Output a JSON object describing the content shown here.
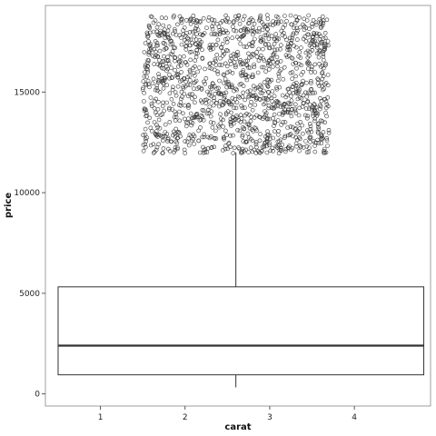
{
  "chart_data": {
    "type": "boxplot",
    "xlabel": "carat",
    "ylabel": "price",
    "xlim": [
      0.35,
      4.9
    ],
    "ylim": [
      -600,
      19300
    ],
    "x_ticks": [
      1,
      2,
      3,
      4
    ],
    "y_ticks": [
      0,
      5000,
      10000,
      15000
    ],
    "grid": false,
    "box": {
      "x_min": 0.5,
      "x_max": 4.82,
      "q1": 950,
      "median": 2400,
      "q3": 5320,
      "whisker_low": 326,
      "whisker_high": 12000,
      "whisker_x": 2.6
    },
    "outliers": {
      "x_range": [
        1.5,
        3.7
      ],
      "y_range": [
        11950,
        18820
      ],
      "count": 1400,
      "marker": "open-circle"
    },
    "colors": {
      "box_stroke": "#333333",
      "median": "#333333",
      "point_stroke": "#333333",
      "panel_border": "#888888"
    }
  }
}
